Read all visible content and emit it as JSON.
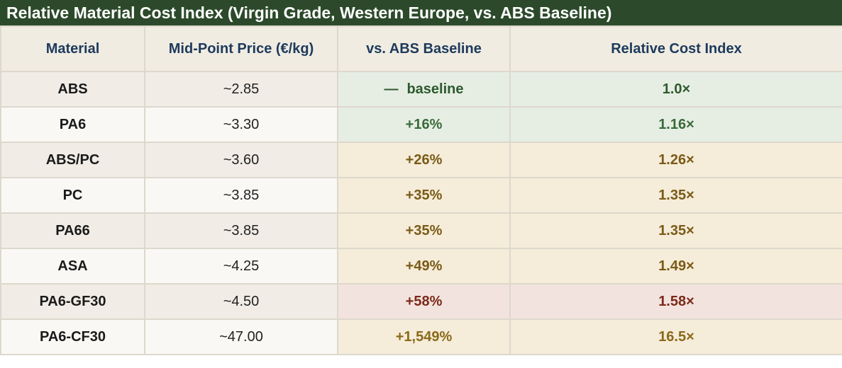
{
  "title": "Relative Material Cost Index (Virgin Grade, Western Europe, vs. ABS Baseline)",
  "columns": [
    "Material",
    "Mid-Point Price (€/kg)",
    "vs. ABS Baseline",
    "Relative Cost Index"
  ],
  "rows": [
    {
      "material": "ABS",
      "price": "~2.85",
      "delta": "baseline",
      "index": "1.0×",
      "tone": "baseline"
    },
    {
      "material": "PA6",
      "price": "~3.30",
      "delta": "+16%",
      "index": "1.16×",
      "tone": "green"
    },
    {
      "material": "ABS/PC",
      "price": "~3.60",
      "delta": "+26%",
      "index": "1.26×",
      "tone": "amber"
    },
    {
      "material": "PC",
      "price": "~3.85",
      "delta": "+35%",
      "index": "1.35×",
      "tone": "amber"
    },
    {
      "material": "PA66",
      "price": "~3.85",
      "delta": "+35%",
      "index": "1.35×",
      "tone": "amber"
    },
    {
      "material": "ASA",
      "price": "~4.25",
      "delta": "+49%",
      "index": "1.49×",
      "tone": "amber"
    },
    {
      "material": "PA6-GF30",
      "price": "~4.50",
      "delta": "+58%",
      "index": "1.58×",
      "tone": "red"
    },
    {
      "material": "PA6-CF30",
      "price": "~47.00",
      "delta": "+1,549%",
      "index": "16.5×",
      "tone": "big"
    }
  ],
  "baseline_dash": "—",
  "colors": {
    "title_bg": "#2c4a2b",
    "header_text": "#1d3a5c",
    "green_text": "#3a6a3a",
    "amber_text": "#7a5a16",
    "red_text": "#7a2a1a"
  }
}
